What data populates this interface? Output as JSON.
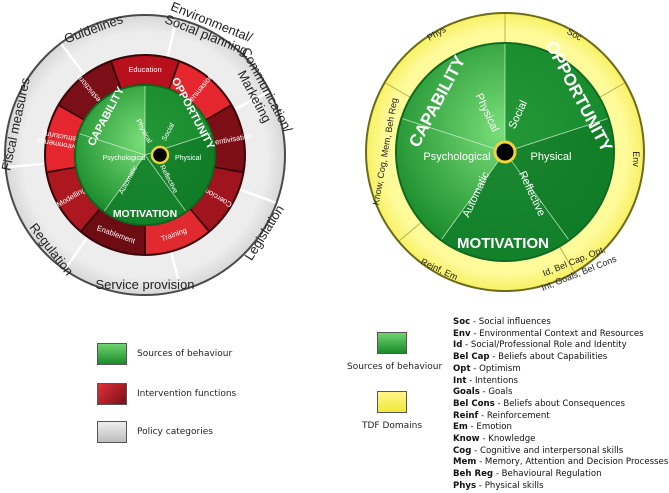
{
  "wheel1": {
    "outer_labels": [
      "Guidelines",
      "Environmental/\nSocial planning",
      "Communication/\nMarketing",
      "Legislation",
      "Service provision",
      "Regulation",
      "Fiscal measures"
    ],
    "functions": [
      "Education",
      "Persuasion",
      "Incentivisation",
      "Coercion",
      "Training",
      "Enablement",
      "Modelling",
      "Environmental\nrestructuring",
      "Restrictions"
    ],
    "com_b": {
      "capability": "CAPABILITY",
      "opportunity": "OPPORTUNITY",
      "motivation": "MOTIVATION"
    },
    "inner": {
      "physical_cap": "Physical",
      "psychological": "Psychological",
      "social": "Social",
      "physical_opp": "Physical",
      "automatic": "Automatic",
      "reflective": "Reflective"
    }
  },
  "wheel2": {
    "tdf": {
      "top_left": "Phys",
      "top_right": "Soc",
      "right": "Env",
      "left": "Know, Cog, Mem, Beh Reg",
      "bottom_left": "Reinf, Em",
      "bottom_right_1": "Id, Bel Cap, Opt,",
      "bottom_right_2": "Int, Goals, Bel Cons"
    },
    "com_b": {
      "capability": "CAPABILITY",
      "opportunity": "OPPORTUNITY",
      "motivation": "MOTIVATION"
    },
    "inner": {
      "physical_cap": "Physical",
      "psychological": "Psychological",
      "social": "Social",
      "physical_opp": "Physical",
      "automatic": "Automatic",
      "reflective": "Reflective"
    }
  },
  "legend1": {
    "sources": "Sources of behaviour",
    "functions": "Intervention functions",
    "policy": "Policy categories"
  },
  "legend2": {
    "sources": "Sources of behaviour",
    "tdf": "TDF Domains"
  },
  "abbreviations": [
    {
      "abbr": "Soc",
      "desc": " - Social influences"
    },
    {
      "abbr": "Env",
      "desc": " - Environmental Context and Resources"
    },
    {
      "abbr": "Id",
      "desc": " - Social/Professional Role and Identity"
    },
    {
      "abbr": "Bel Cap",
      "desc": " - Beliefs about Capabilities"
    },
    {
      "abbr": "Opt",
      "desc": " - Optimism"
    },
    {
      "abbr": "Int",
      "desc": " - Intentions"
    },
    {
      "abbr": "Goals",
      "desc": " - Goals"
    },
    {
      "abbr": "Bel Cons",
      "desc": " - Beliefs about Consequences"
    },
    {
      "abbr": "Reinf",
      "desc": " - Reinforcement"
    },
    {
      "abbr": "Em",
      "desc": " - Emotion"
    },
    {
      "abbr": "Know",
      "desc": " - Knowledge"
    },
    {
      "abbr": "Cog",
      "desc": " - Cognitive and interpersonal skills"
    },
    {
      "abbr": "Mem",
      "desc": " - Memory, Attention and Decision Processes"
    },
    {
      "abbr": "Beh Reg",
      "desc": " - Behavioural Regulation"
    },
    {
      "abbr": "Phys",
      "desc": " - Physical skills"
    }
  ]
}
